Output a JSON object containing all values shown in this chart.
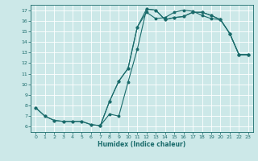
{
  "xlabel": "Humidex (Indice chaleur)",
  "ylabel": "",
  "xlim": [
    -0.5,
    23.5
  ],
  "ylim": [
    5.5,
    17.5
  ],
  "xticks": [
    0,
    1,
    2,
    3,
    4,
    5,
    6,
    7,
    8,
    9,
    10,
    11,
    12,
    13,
    14,
    15,
    16,
    17,
    18,
    19,
    20,
    21,
    22,
    23
  ],
  "yticks": [
    6,
    7,
    8,
    9,
    10,
    11,
    12,
    13,
    14,
    15,
    16,
    17
  ],
  "bg_color": "#cce8e8",
  "grid_color": "#ffffff",
  "line_color": "#1a6b6b",
  "line1_x": [
    0,
    1,
    2,
    3,
    4,
    5,
    6,
    7,
    8,
    9,
    10,
    11,
    12,
    13,
    14,
    15,
    16,
    17,
    18,
    19,
    20,
    21,
    22,
    23
  ],
  "line1_y": [
    7.8,
    7.0,
    6.6,
    6.5,
    6.5,
    6.5,
    6.2,
    6.1,
    7.2,
    7.0,
    10.2,
    13.3,
    17.1,
    17.0,
    16.1,
    16.3,
    16.4,
    16.8,
    16.8,
    16.5,
    16.1,
    14.8,
    12.8,
    12.8
  ],
  "line2_x": [
    0,
    1,
    2,
    3,
    4,
    5,
    6,
    7,
    8,
    9,
    10,
    11,
    12,
    13,
    14,
    15,
    16,
    17,
    18,
    19,
    20,
    21,
    22,
    23
  ],
  "line2_y": [
    7.8,
    7.0,
    6.6,
    6.5,
    6.5,
    6.5,
    6.2,
    6.1,
    8.4,
    10.3,
    11.5,
    15.4,
    16.8,
    16.2,
    16.3,
    16.8,
    17.0,
    16.9,
    16.5,
    16.2,
    16.1,
    14.8,
    12.8,
    12.8
  ],
  "line3_x": [
    7,
    8,
    9,
    10,
    11,
    12,
    13,
    14,
    15,
    16,
    17,
    18,
    19,
    20,
    21,
    22,
    23
  ],
  "line3_y": [
    6.1,
    8.4,
    10.3,
    11.5,
    15.4,
    17.1,
    17.0,
    16.1,
    16.3,
    16.4,
    16.8,
    16.8,
    16.5,
    16.1,
    14.8,
    12.8,
    12.8
  ],
  "figsize": [
    3.2,
    2.0
  ],
  "dpi": 100
}
